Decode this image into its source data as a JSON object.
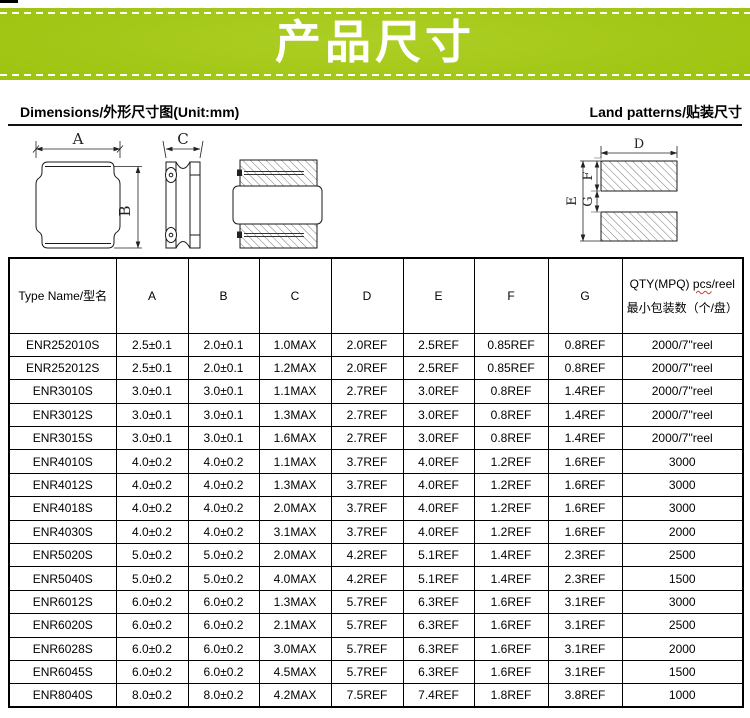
{
  "banner": {
    "title": "产品尺寸",
    "green": "#9fc411"
  },
  "section": {
    "left_heading": "Dimensions/外形尺寸图(Unit:mm)",
    "right_heading": "Land patterns/贴装尺寸"
  },
  "drawings": {
    "labels": {
      "a": "A",
      "b": "B",
      "c": "C",
      "d": "D",
      "e": "E",
      "f": "F",
      "g": "G"
    }
  },
  "table": {
    "headers": {
      "type_name": "Type Name/型名",
      "dims": [
        "A",
        "B",
        "C",
        "D",
        "E",
        "F",
        "G"
      ],
      "qty_line1_prefix": "QTY(MPQ) ",
      "qty_line1_pcs": "pcs",
      "qty_line1_suffix": "/reel",
      "qty_line2": "最小包装数（个/盘）"
    },
    "rows": [
      [
        "ENR252010S",
        "2.5±0.1",
        "2.0±0.1",
        "1.0MAX",
        "2.0REF",
        "2.5REF",
        "0.85REF",
        "0.8REF",
        "2000/7\"reel"
      ],
      [
        "ENR252012S",
        "2.5±0.1",
        "2.0±0.1",
        "1.2MAX",
        "2.0REF",
        "2.5REF",
        "0.85REF",
        "0.8REF",
        "2000/7\"reel"
      ],
      [
        "ENR3010S",
        "3.0±0.1",
        "3.0±0.1",
        "1.1MAX",
        "2.7REF",
        "3.0REF",
        "0.8REF",
        "1.4REF",
        "2000/7\"reel"
      ],
      [
        "ENR3012S",
        "3.0±0.1",
        "3.0±0.1",
        "1.3MAX",
        "2.7REF",
        "3.0REF",
        "0.8REF",
        "1.4REF",
        "2000/7\"reel"
      ],
      [
        "ENR3015S",
        "3.0±0.1",
        "3.0±0.1",
        "1.6MAX",
        "2.7REF",
        "3.0REF",
        "0.8REF",
        "1.4REF",
        "2000/7\"reel"
      ],
      [
        "ENR4010S",
        "4.0±0.2",
        "4.0±0.2",
        "1.1MAX",
        "3.7REF",
        "4.0REF",
        "1.2REF",
        "1.6REF",
        "3000"
      ],
      [
        "ENR4012S",
        "4.0±0.2",
        "4.0±0.2",
        "1.3MAX",
        "3.7REF",
        "4.0REF",
        "1.2REF",
        "1.6REF",
        "3000"
      ],
      [
        "ENR4018S",
        "4.0±0.2",
        "4.0±0.2",
        "2.0MAX",
        "3.7REF",
        "4.0REF",
        "1.2REF",
        "1.6REF",
        "3000"
      ],
      [
        "ENR4030S",
        "4.0±0.2",
        "4.0±0.2",
        "3.1MAX",
        "3.7REF",
        "4.0REF",
        "1.2REF",
        "1.6REF",
        "2000"
      ],
      [
        "ENR5020S",
        "5.0±0.2",
        "5.0±0.2",
        "2.0MAX",
        "4.2REF",
        "5.1REF",
        "1.4REF",
        "2.3REF",
        "2500"
      ],
      [
        "ENR5040S",
        "5.0±0.2",
        "5.0±0.2",
        "4.0MAX",
        "4.2REF",
        "5.1REF",
        "1.4REF",
        "2.3REF",
        "1500"
      ],
      [
        "ENR6012S",
        "6.0±0.2",
        "6.0±0.2",
        "1.3MAX",
        "5.7REF",
        "6.3REF",
        "1.6REF",
        "3.1REF",
        "3000"
      ],
      [
        "ENR6020S",
        "6.0±0.2",
        "6.0±0.2",
        "2.1MAX",
        "5.7REF",
        "6.3REF",
        "1.6REF",
        "3.1REF",
        "2500"
      ],
      [
        "ENR6028S",
        "6.0±0.2",
        "6.0±0.2",
        "3.0MAX",
        "5.7REF",
        "6.3REF",
        "1.6REF",
        "3.1REF",
        "2000"
      ],
      [
        "ENR6045S",
        "6.0±0.2",
        "6.0±0.2",
        "4.5MAX",
        "5.7REF",
        "6.3REF",
        "1.6REF",
        "3.1REF",
        "1500"
      ],
      [
        "ENR8040S",
        "8.0±0.2",
        "8.0±0.2",
        "4.2MAX",
        "7.5REF",
        "7.4REF",
        "1.8REF",
        "3.8REF",
        "1000"
      ]
    ]
  }
}
